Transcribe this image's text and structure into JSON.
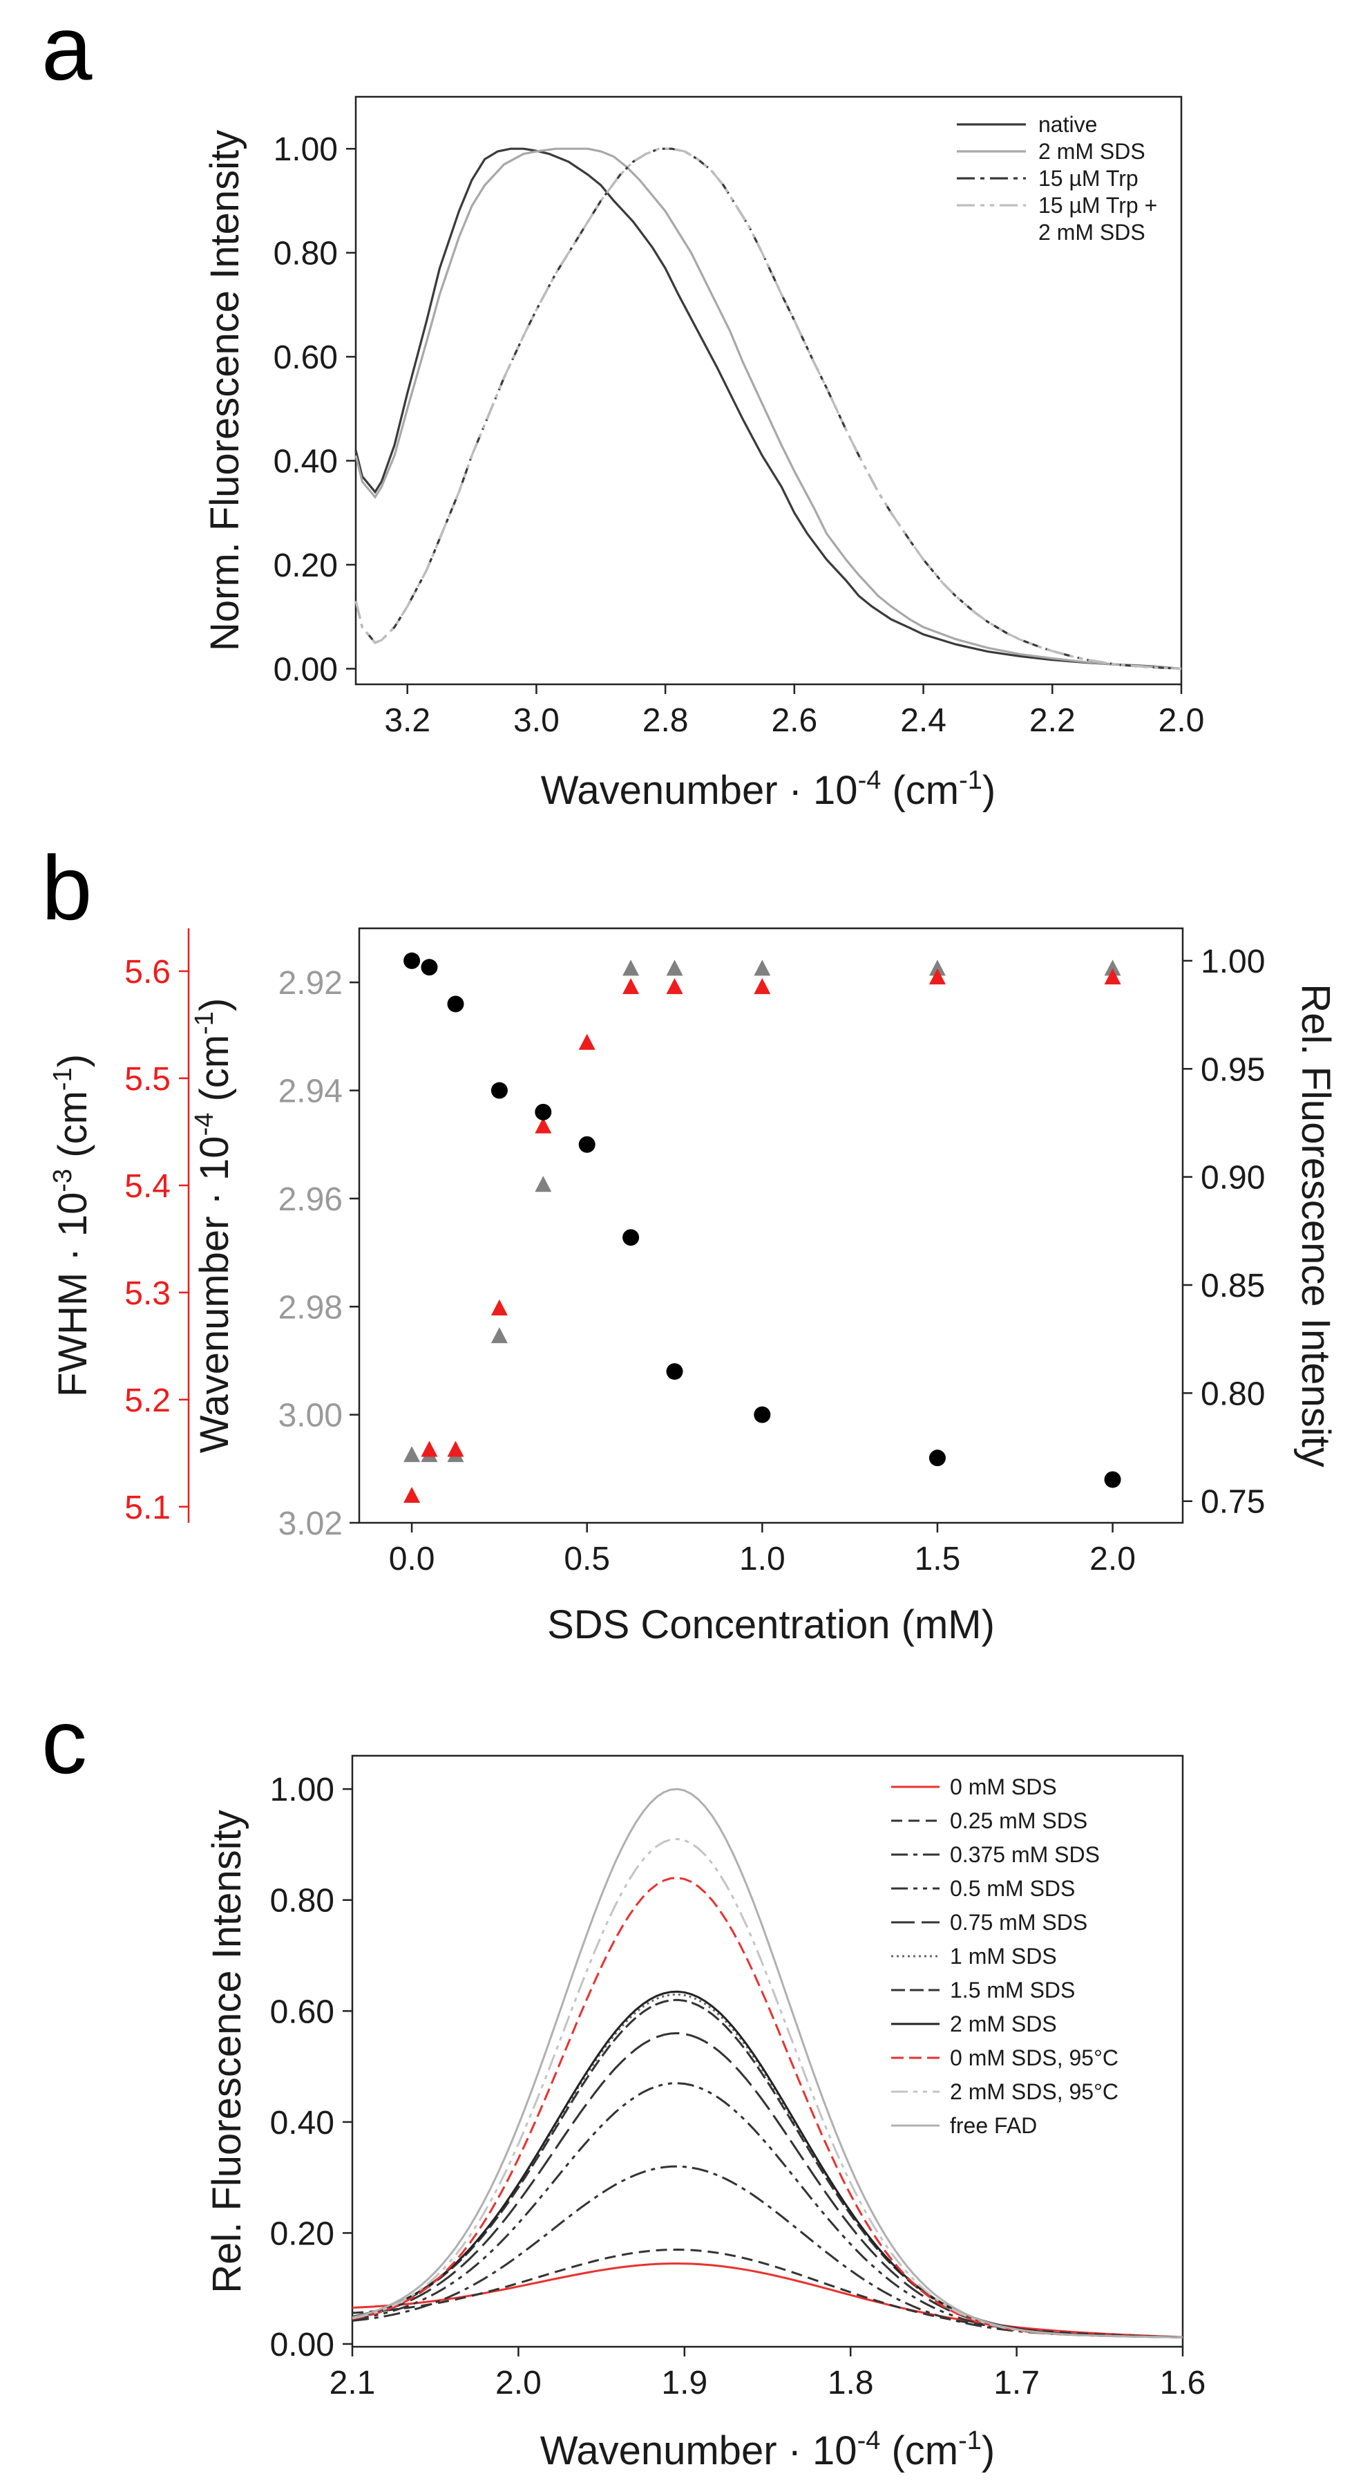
{
  "chart_data": [
    {
      "panel": "a",
      "type": "line",
      "xlabel": "Wavenumber · 10",
      "xlabel_sup": "-4",
      "xlabel_unit_pre": " (cm",
      "xlabel_unit_sup": "-1",
      "xlabel_unit_post": ")",
      "ylabel": "Norm.  Fluorescence Intensity",
      "xlim": [
        3.28,
        2.0
      ],
      "ylim": [
        -0.03,
        1.1
      ],
      "xticks": [
        "3.2",
        "3.0",
        "2.8",
        "2.6",
        "2.4",
        "2.2",
        "2.0"
      ],
      "yticks": [
        "0.00",
        "0.20",
        "0.40",
        "0.60",
        "0.80",
        "1.00"
      ],
      "series": [
        {
          "name": "native",
          "color": "#3a3a3a",
          "dash": "",
          "x": [
            3.28,
            3.27,
            3.25,
            3.24,
            3.22,
            3.2,
            3.17,
            3.15,
            3.12,
            3.1,
            3.08,
            3.06,
            3.04,
            3.02,
            3.0,
            2.98,
            2.95,
            2.92,
            2.9,
            2.88,
            2.85,
            2.82,
            2.8,
            2.78,
            2.75,
            2.72,
            2.7,
            2.68,
            2.65,
            2.62,
            2.6,
            2.58,
            2.55,
            2.52,
            2.5,
            2.48,
            2.45,
            2.42,
            2.4,
            2.35,
            2.3,
            2.25,
            2.2,
            2.15,
            2.1,
            2.05,
            2.0
          ],
          "y": [
            0.42,
            0.37,
            0.34,
            0.36,
            0.43,
            0.53,
            0.67,
            0.77,
            0.88,
            0.94,
            0.98,
            0.995,
            1.0,
            1.0,
            0.996,
            0.99,
            0.975,
            0.95,
            0.93,
            0.9,
            0.86,
            0.81,
            0.77,
            0.72,
            0.65,
            0.58,
            0.53,
            0.48,
            0.41,
            0.35,
            0.3,
            0.26,
            0.21,
            0.17,
            0.14,
            0.12,
            0.095,
            0.078,
            0.066,
            0.047,
            0.033,
            0.024,
            0.017,
            0.012,
            0.008,
            0.005,
            0.0
          ]
        },
        {
          "name": "2 mM SDS",
          "color": "#a8a8a8",
          "dash": "",
          "x": [
            3.28,
            3.27,
            3.25,
            3.24,
            3.22,
            3.2,
            3.17,
            3.15,
            3.12,
            3.1,
            3.08,
            3.05,
            3.02,
            3.0,
            2.97,
            2.95,
            2.92,
            2.9,
            2.88,
            2.86,
            2.84,
            2.82,
            2.8,
            2.78,
            2.76,
            2.74,
            2.72,
            2.7,
            2.68,
            2.65,
            2.62,
            2.6,
            2.57,
            2.55,
            2.52,
            2.5,
            2.47,
            2.45,
            2.42,
            2.4,
            2.35,
            2.3,
            2.25,
            2.2,
            2.15,
            2.1,
            2.05,
            2.0
          ],
          "y": [
            0.41,
            0.36,
            0.33,
            0.35,
            0.41,
            0.5,
            0.63,
            0.72,
            0.83,
            0.89,
            0.93,
            0.97,
            0.99,
            0.995,
            1.0,
            1.0,
            1.0,
            0.995,
            0.985,
            0.965,
            0.94,
            0.91,
            0.88,
            0.84,
            0.8,
            0.75,
            0.7,
            0.65,
            0.59,
            0.51,
            0.43,
            0.38,
            0.31,
            0.26,
            0.21,
            0.18,
            0.14,
            0.12,
            0.094,
            0.08,
            0.057,
            0.04,
            0.028,
            0.02,
            0.013,
            0.008,
            0.004,
            0.0
          ]
        },
        {
          "name": "15 µM Trp",
          "color": "#3a3a3a",
          "dash": "26,8,6,8",
          "x": [
            3.28,
            3.27,
            3.25,
            3.24,
            3.22,
            3.2,
            3.17,
            3.15,
            3.12,
            3.1,
            3.07,
            3.05,
            3.02,
            3.0,
            2.97,
            2.95,
            2.92,
            2.9,
            2.87,
            2.85,
            2.83,
            2.81,
            2.79,
            2.77,
            2.75,
            2.73,
            2.71,
            2.69,
            2.67,
            2.65,
            2.62,
            2.6,
            2.57,
            2.55,
            2.52,
            2.5,
            2.47,
            2.45,
            2.42,
            2.4,
            2.37,
            2.35,
            2.32,
            2.3,
            2.27,
            2.25,
            2.22,
            2.2,
            2.17,
            2.15,
            2.12,
            2.1,
            2.05,
            2.0
          ],
          "y": [
            0.13,
            0.08,
            0.05,
            0.055,
            0.08,
            0.12,
            0.19,
            0.25,
            0.34,
            0.41,
            0.5,
            0.56,
            0.64,
            0.69,
            0.76,
            0.8,
            0.86,
            0.9,
            0.95,
            0.975,
            0.99,
            1.0,
            1.0,
            0.995,
            0.98,
            0.96,
            0.93,
            0.89,
            0.85,
            0.8,
            0.72,
            0.67,
            0.59,
            0.54,
            0.46,
            0.41,
            0.34,
            0.3,
            0.245,
            0.21,
            0.165,
            0.14,
            0.108,
            0.09,
            0.068,
            0.056,
            0.042,
            0.034,
            0.024,
            0.018,
            0.012,
            0.008,
            0.003,
            0.0
          ]
        },
        {
          "name": "15 µM Trp +\n2 mM SDS",
          "color": "#bdbdbd",
          "dash": "26,8,6,8,6,8",
          "x": [
            3.28,
            3.27,
            3.25,
            3.24,
            3.22,
            3.2,
            3.17,
            3.15,
            3.12,
            3.1,
            3.07,
            3.05,
            3.02,
            3.0,
            2.97,
            2.95,
            2.92,
            2.9,
            2.87,
            2.85,
            2.83,
            2.81,
            2.79,
            2.77,
            2.75,
            2.73,
            2.71,
            2.69,
            2.67,
            2.65,
            2.62,
            2.6,
            2.57,
            2.55,
            2.52,
            2.5,
            2.47,
            2.45,
            2.42,
            2.4,
            2.37,
            2.35,
            2.32,
            2.3,
            2.27,
            2.25,
            2.22,
            2.2,
            2.17,
            2.15,
            2.12,
            2.1,
            2.05,
            2.0
          ],
          "y": [
            0.13,
            0.08,
            0.05,
            0.055,
            0.08,
            0.12,
            0.19,
            0.25,
            0.34,
            0.41,
            0.5,
            0.56,
            0.64,
            0.69,
            0.76,
            0.8,
            0.86,
            0.9,
            0.95,
            0.975,
            0.99,
            1.0,
            1.0,
            0.995,
            0.98,
            0.96,
            0.93,
            0.89,
            0.85,
            0.8,
            0.72,
            0.67,
            0.59,
            0.54,
            0.46,
            0.41,
            0.34,
            0.3,
            0.245,
            0.21,
            0.165,
            0.14,
            0.108,
            0.09,
            0.068,
            0.056,
            0.042,
            0.034,
            0.024,
            0.018,
            0.012,
            0.008,
            0.003,
            0.0
          ]
        }
      ],
      "legend": {
        "placement": "top-right",
        "entries": [
          "native",
          "2 mM SDS",
          "15 µM Trp",
          "15 µM Trp +",
          "2 mM SDS"
        ]
      }
    },
    {
      "panel": "b",
      "type": "scatter",
      "xlabel": "SDS Concentration (mM)",
      "xlim": [
        -0.15,
        2.2
      ],
      "xticks": [
        "0.0",
        "0.5",
        "1.0",
        "1.5",
        "2.0"
      ],
      "axes": {
        "fwhm": {
          "label": "FWHM · 10",
          "label_sup": "-3",
          "label_post": " (cm",
          "label_sup2": "-1",
          "label_end": ")",
          "color": "#ee1c1c",
          "lim": [
            5.085,
            5.64
          ],
          "ticks": [
            "5.1",
            "5.2",
            "5.3",
            "5.4",
            "5.5",
            "5.6"
          ]
        },
        "wavenumber": {
          "label": "Wavenumber · 10",
          "label_sup": "-4",
          "label_post": " (cm",
          "label_sup2": "-1",
          "label_end": ")",
          "color": "#9a9a9a",
          "lim": [
            3.02,
            2.91
          ],
          "ticks": [
            "2.92",
            "2.94",
            "2.96",
            "2.98",
            "3.00",
            "3.02"
          ]
        },
        "intensity": {
          "label": "Rel.  Fluorescence Intensity",
          "color": "#111111",
          "lim": [
            0.74,
            1.015
          ],
          "ticks": [
            "0.75",
            "0.80",
            "0.85",
            "0.90",
            "0.95",
            "1.00"
          ]
        }
      },
      "series": [
        {
          "name": "Rel. Fluorescence Intensity",
          "marker": "circle",
          "color": "#000000",
          "axis": "intensity",
          "x": [
            0.0,
            0.05,
            0.125,
            0.25,
            0.375,
            0.5,
            0.625,
            0.75,
            1.0,
            1.5,
            2.0
          ],
          "y": [
            1.0,
            0.997,
            0.98,
            0.94,
            0.93,
            0.915,
            0.872,
            0.81,
            0.79,
            0.77,
            0.76
          ]
        },
        {
          "name": "Wavenumber",
          "marker": "triangle",
          "color": "#808080",
          "axis": "wavenumber",
          "x": [
            0.0,
            0.05,
            0.125,
            0.25,
            0.375,
            0.625,
            0.75,
            1.0,
            1.5,
            2.0
          ],
          "y": [
            3.0075,
            3.0075,
            3.0075,
            2.9855,
            2.9575,
            2.9175,
            2.9175,
            2.9175,
            2.9175,
            2.9175
          ]
        },
        {
          "name": "FWHM",
          "marker": "triangle",
          "color": "#ee1c1c",
          "axis": "fwhm",
          "x": [
            0.0,
            0.05,
            0.125,
            0.25,
            0.375,
            0.5,
            0.625,
            0.75,
            1.0,
            1.5,
            2.0
          ],
          "y": [
            5.11,
            5.153,
            5.153,
            5.285,
            5.455,
            5.533,
            5.585,
            5.585,
            5.585,
            5.594,
            5.594
          ]
        }
      ]
    },
    {
      "panel": "c",
      "type": "line",
      "xlabel": "Wavenumber · 10",
      "xlabel_sup": "-4",
      "xlabel_unit_pre": " (cm",
      "xlabel_unit_sup": "-1",
      "xlabel_unit_post": ")",
      "ylabel": "Rel.  Fluorescence Intensity",
      "xlim": [
        2.1,
        1.6
      ],
      "ylim": [
        -0.005,
        1.06
      ],
      "xticks": [
        "2.1",
        "2.0",
        "1.9",
        "1.8",
        "1.7",
        "1.6"
      ],
      "yticks": [
        "0.00",
        "0.20",
        "0.40",
        "0.60",
        "0.80",
        "1.00"
      ],
      "peak_center": 1.905,
      "series": [
        {
          "name": "0 mM SDS",
          "color": "#e8322f",
          "dash": "",
          "peak": 0.145,
          "sigma": 0.09,
          "base_left": 0.045
        },
        {
          "name": "0.25 mM SDS",
          "color": "#333333",
          "dash": "16,9",
          "peak": 0.17,
          "sigma": 0.085,
          "base_left": 0.035
        },
        {
          "name": "0.375 mM SDS",
          "color": "#333333",
          "dash": "24,8,6,8",
          "peak": 0.32,
          "sigma": 0.075,
          "base_left": 0.02
        },
        {
          "name": "0.5 mM SDS",
          "color": "#333333",
          "dash": "24,8,6,8,6,8",
          "peak": 0.47,
          "sigma": 0.073,
          "base_left": 0.02
        },
        {
          "name": "0.75 mM SDS",
          "color": "#333333",
          "dash": "34,10",
          "peak": 0.56,
          "sigma": 0.073,
          "base_left": 0.02
        },
        {
          "name": "1 mM SDS",
          "color": "#666666",
          "dash": "3,5",
          "peak": 0.63,
          "sigma": 0.073,
          "base_left": 0.02
        },
        {
          "name": "1.5 mM SDS",
          "color": "#333333",
          "dash": "20,7",
          "peak": 0.62,
          "sigma": 0.073,
          "base_left": 0.02
        },
        {
          "name": "2 mM SDS",
          "color": "#222222",
          "dash": "",
          "peak": 0.635,
          "sigma": 0.073,
          "base_left": 0.02
        },
        {
          "name": "0 mM SDS, 95°C",
          "color": "#e8322f",
          "dash": "18,8",
          "peak": 0.84,
          "sigma": 0.068,
          "base_left": 0.02
        },
        {
          "name": "2 mM SDS, 95°C",
          "color": "#c4c4c4",
          "dash": "24,8,6,8,6,8",
          "peak": 0.91,
          "sigma": 0.068,
          "base_left": 0.02
        },
        {
          "name": "free FAD",
          "color": "#b0b0b0",
          "dash": "",
          "peak": 1.0,
          "sigma": 0.068,
          "base_left": 0.02
        }
      ],
      "legend": {
        "placement": "top-right"
      }
    }
  ],
  "panel_letters": {
    "a": "a",
    "b": "b",
    "c": "c"
  }
}
